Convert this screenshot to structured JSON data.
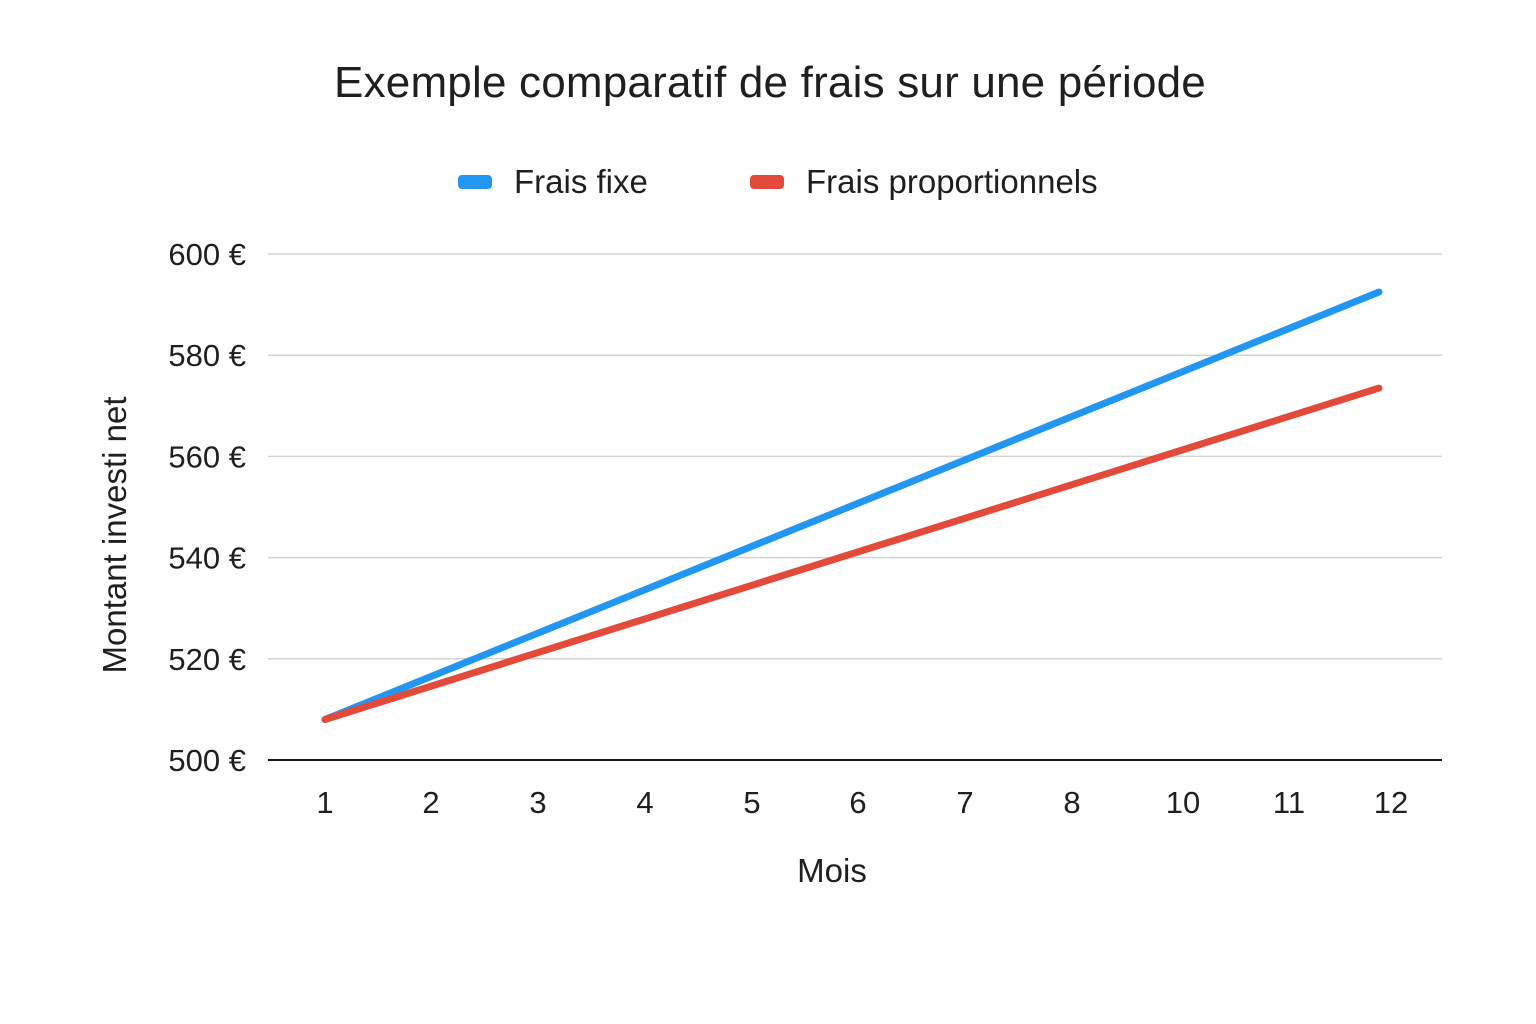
{
  "chart_data": {
    "type": "line",
    "title": "Exemple comparatif de frais sur une période",
    "xlabel": "Mois",
    "ylabel": "Montant investi net",
    "categories": [
      "1",
      "2",
      "3",
      "4",
      "5",
      "6",
      "7",
      "8",
      "10",
      "11",
      "12"
    ],
    "ylim": [
      500,
      600
    ],
    "yticks": [
      {
        "value": 500,
        "label": "500 €"
      },
      {
        "value": 520,
        "label": "520 €"
      },
      {
        "value": 540,
        "label": "540 €"
      },
      {
        "value": 560,
        "label": "560 €"
      },
      {
        "value": 580,
        "label": "580 €"
      },
      {
        "value": 600,
        "label": "600 €"
      }
    ],
    "grid": true,
    "legend_position": "top-center",
    "series": [
      {
        "name": "Frais fixe",
        "color": "#2196f3",
        "start": {
          "category": "1",
          "value": 508
        },
        "end": {
          "category": "12",
          "value": 592.5
        }
      },
      {
        "name": "Frais proportionnels",
        "color": "#e34a3a",
        "start": {
          "category": "1",
          "value": 508
        },
        "end": {
          "category": "12",
          "value": 573.5
        }
      }
    ]
  }
}
